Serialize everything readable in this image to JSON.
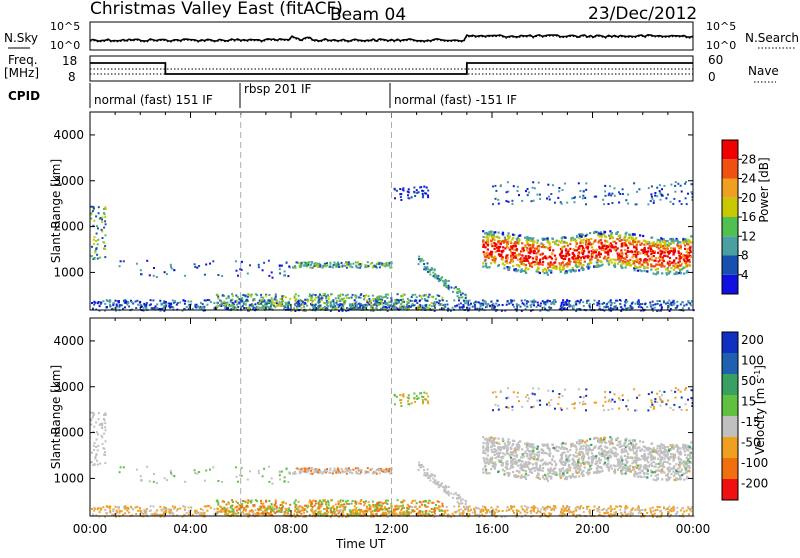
{
  "header": {
    "station": "Christmas Valley East (fitACF)",
    "beam": "Beam 04",
    "date": "23/Dec/2012"
  },
  "noise_panel": {
    "left_label": "N.Sky",
    "right_label": "N.Search",
    "left_ticks": [
      "10^5",
      "10^0"
    ],
    "right_ticks": [
      "10^5",
      "10^0"
    ]
  },
  "freq_panel": {
    "left_label_1": "Freq.",
    "left_label_2": "[MHz]",
    "right_label": "Nave",
    "left_ticks": [
      "18",
      "8"
    ],
    "right_ticks": [
      "60",
      "0"
    ]
  },
  "cpid": {
    "label": "CPID",
    "segments": [
      {
        "label": "normal (fast) 151 IF",
        "start_h": 0,
        "end_h": 6
      },
      {
        "label": "rbsp 201 IF",
        "start_h": 6,
        "end_h": 12
      },
      {
        "label": "normal (fast) -151 IF",
        "start_h": 12,
        "end_h": 24
      }
    ]
  },
  "chart_data": [
    {
      "type": "heatmap",
      "title": "",
      "xlabel": "",
      "ylabel": "Slant Range [km]",
      "xlim": [
        0,
        24
      ],
      "ylim": [
        180,
        4500
      ],
      "y_ticks": [
        1000,
        2000,
        3000,
        4000
      ],
      "colorbar": {
        "label": "Power [dB]",
        "ticks": [
          "4",
          "8",
          "12",
          "16",
          "20",
          "24",
          "28"
        ],
        "colors": [
          "#1010e0",
          "#1850b0",
          "#4aa0a0",
          "#50c050",
          "#c8c800",
          "#f0a020",
          "#f05010",
          "#f00000"
        ]
      }
    },
    {
      "type": "heatmap",
      "title": "",
      "xlabel": "Time UT",
      "ylabel": "Slant Range [km]",
      "xlim": [
        0,
        24
      ],
      "ylim": [
        180,
        4500
      ],
      "y_ticks": [
        1000,
        2000,
        3000,
        4000
      ],
      "x_ticks": [
        "00:00",
        "04:00",
        "08:00",
        "12:00",
        "16:00",
        "20:00",
        "00:00"
      ],
      "colorbar": {
        "label": "Velocity [m s^-1]",
        "ticks": [
          "200",
          "100",
          "50",
          "15",
          "-15",
          "-50",
          "-100",
          "-200"
        ],
        "colors": [
          "#1030c0",
          "#2060b0",
          "#38a060",
          "#60c040",
          "#c0c0c0",
          "#f0a020",
          "#f07010",
          "#f01010"
        ]
      }
    }
  ]
}
